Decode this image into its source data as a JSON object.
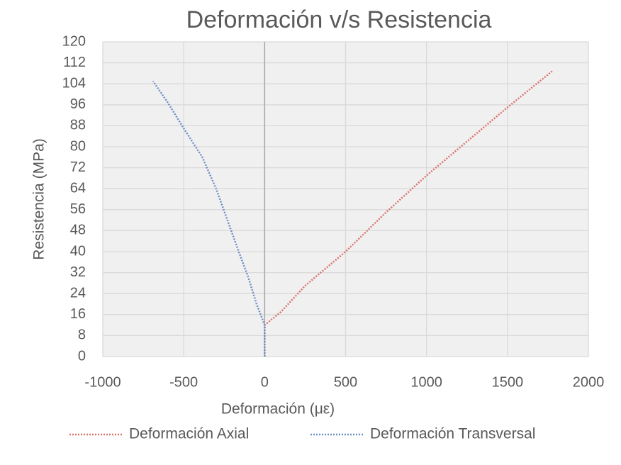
{
  "chart_data": {
    "type": "line",
    "title": "Deformación  v/s Resistencia",
    "x_label": "Deformación (με)",
    "y_label": "Resistencia (MPa)",
    "xlim": [
      -1000,
      2000
    ],
    "xticks": [
      -1000,
      -500,
      0,
      500,
      1000,
      1500,
      2000
    ],
    "ylim": [
      0,
      120
    ],
    "yticks": [
      0,
      8,
      16,
      24,
      32,
      40,
      48,
      56,
      64,
      72,
      80,
      88,
      96,
      104,
      112,
      120
    ],
    "grid": true,
    "legend": "bottom",
    "series": [
      {
        "name": "Deformación Axial",
        "color": "#d9736b",
        "x": [
          0,
          0,
          100,
          250,
          500,
          750,
          1000,
          1250,
          1500,
          1780
        ],
        "values": [
          0,
          12,
          17,
          27,
          40,
          55,
          69,
          82,
          95,
          109
        ]
      },
      {
        "name": "Deformación Transversal",
        "color": "#6f8fc4",
        "x": [
          0,
          0,
          -50,
          -100,
          -160,
          -230,
          -300,
          -385,
          -500,
          -600,
          -690
        ],
        "values": [
          0,
          12,
          20,
          30,
          40,
          52,
          64,
          76,
          87,
          97,
          105
        ]
      }
    ]
  }
}
